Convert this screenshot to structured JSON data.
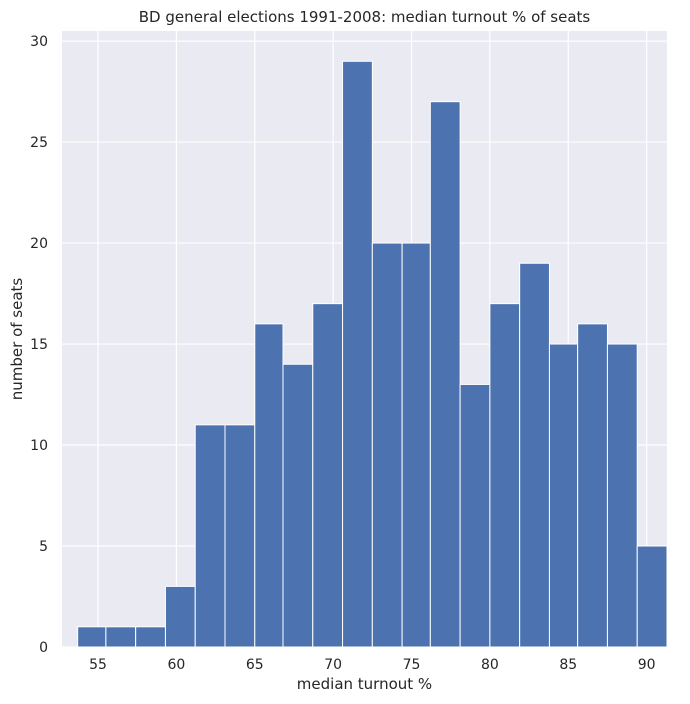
{
  "chart_data": {
    "type": "bar",
    "title": "BD general elections 1991-2008: median turnout % of seats",
    "xlabel": "median turnout %",
    "ylabel": "number of seats",
    "xlim": [
      52.7,
      91.3
    ],
    "ylim": [
      0,
      30.5
    ],
    "xticks": [
      55,
      60,
      65,
      70,
      75,
      80,
      85,
      90
    ],
    "yticks": [
      0,
      5,
      10,
      15,
      20,
      25,
      30
    ],
    "grid": true,
    "background_color": "#eaeaf2",
    "bar_color": "#4c72b0",
    "bins": [
      {
        "x0": 53.7,
        "x1": 55.5,
        "count": 1
      },
      {
        "x0": 55.5,
        "x1": 57.4,
        "count": 1
      },
      {
        "x0": 57.4,
        "x1": 59.3,
        "count": 1
      },
      {
        "x0": 59.3,
        "x1": 61.2,
        "count": 3
      },
      {
        "x0": 61.2,
        "x1": 63.1,
        "count": 11
      },
      {
        "x0": 63.1,
        "x1": 65.0,
        "count": 11
      },
      {
        "x0": 65.0,
        "x1": 66.8,
        "count": 16
      },
      {
        "x0": 66.8,
        "x1": 68.7,
        "count": 14
      },
      {
        "x0": 68.7,
        "x1": 70.6,
        "count": 17
      },
      {
        "x0": 70.6,
        "x1": 72.5,
        "count": 29
      },
      {
        "x0": 72.5,
        "x1": 74.4,
        "count": 20
      },
      {
        "x0": 74.4,
        "x1": 76.2,
        "count": 20
      },
      {
        "x0": 76.2,
        "x1": 78.1,
        "count": 27
      },
      {
        "x0": 78.1,
        "x1": 80.0,
        "count": 13
      },
      {
        "x0": 80.0,
        "x1": 81.9,
        "count": 17
      },
      {
        "x0": 81.9,
        "x1": 83.8,
        "count": 19
      },
      {
        "x0": 83.8,
        "x1": 85.6,
        "count": 15
      },
      {
        "x0": 85.6,
        "x1": 87.5,
        "count": 16
      },
      {
        "x0": 87.5,
        "x1": 89.4,
        "count": 15
      },
      {
        "x0": 89.4,
        "x1": 91.3,
        "count": 5
      }
    ]
  }
}
